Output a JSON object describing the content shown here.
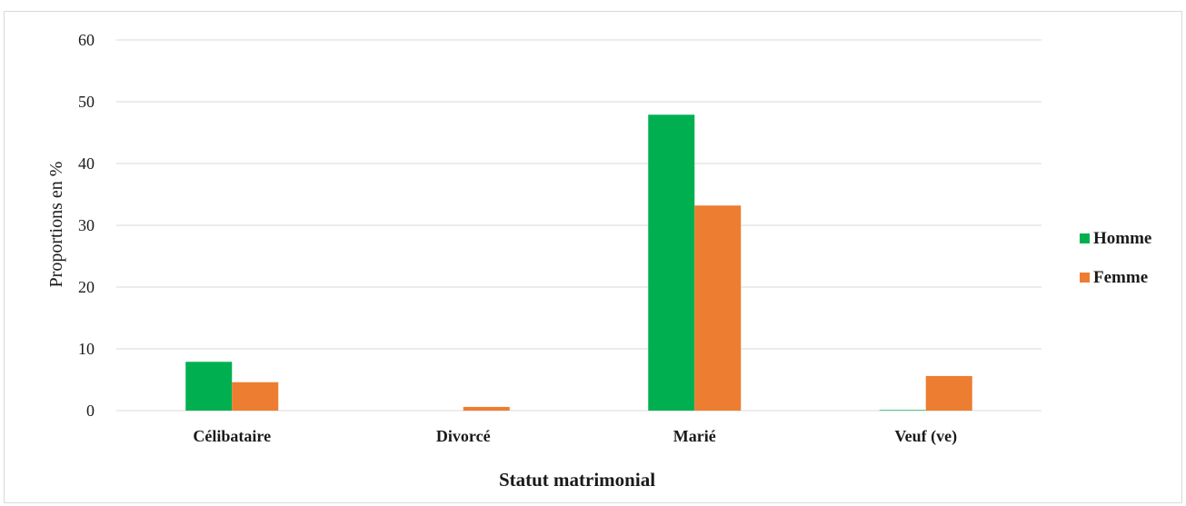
{
  "chart_data": {
    "type": "bar",
    "categories": [
      "Célibataire",
      "Divorcé",
      "Marié",
      "Veuf (ve)"
    ],
    "series": [
      {
        "name": "Homme",
        "values": [
          7.9,
          0,
          47.9,
          0.1
        ],
        "color": "#00b050"
      },
      {
        "name": "Femme",
        "values": [
          4.6,
          0.6,
          33.2,
          5.6
        ],
        "color": "#ed7d31"
      }
    ],
    "yticks": [
      0,
      10,
      20,
      30,
      40,
      50,
      60
    ],
    "ylim": [
      0,
      60
    ],
    "xlabel": "Statut matrimonial",
    "ylabel": "Proportions en %",
    "grid": true,
    "gridColor": "#d9d9d9",
    "legend": "right"
  }
}
